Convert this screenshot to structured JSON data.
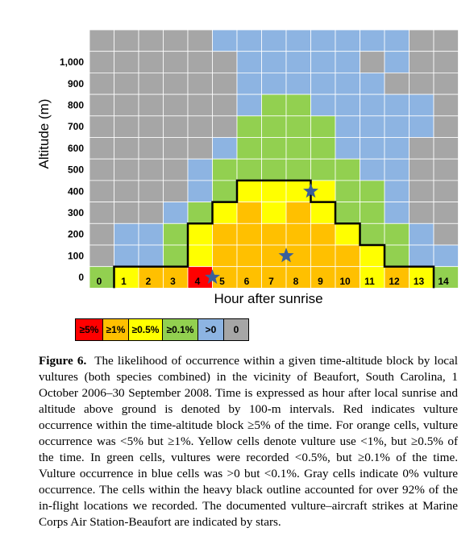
{
  "chart_data": {
    "type": "heatmap",
    "xlabel": "Hour after sunrise",
    "ylabel": "Altitude (m)",
    "x_ticks": [
      "0",
      "1",
      "2",
      "3",
      "4",
      "5",
      "6",
      "7",
      "8",
      "9",
      "10",
      "11",
      "12",
      "13",
      "14"
    ],
    "y_ticks": [
      "0",
      "100",
      "200",
      "300",
      "400",
      "500",
      "600",
      "700",
      "800",
      "900",
      "1,000"
    ],
    "categories": [
      "≥5%",
      "≥1%",
      "≥0.5%",
      "≥0.1%",
      ">0",
      "0"
    ],
    "colors": {
      "red": "#ff0000",
      "orange": "#ffc000",
      "yellow": "#ffff00",
      "green": "#92d050",
      "blue": "#8db4e2",
      "gray": "#a6a6a6"
    },
    "rows_top_to_bottom": [
      "GGGGGBBBBBBBBGG",
      "GGGGGGBBBBBGBGG",
      "GGGGGGBBBBBBGGG",
      "GGGGGGBNNBBBBBG",
      "GGGGGGNNNNBBBBG",
      "GGGGGBNNNNBBBGG",
      "GGGGBNNNNNNBBGG",
      "GGGGBNYYYYNNBGG",
      "GGGBNYOYOYNNBGG",
      "GBBNYOOOOOYNNBG",
      "GBBNYOOOOOOYNBB",
      "NYOOROOOOOOYOYN"
    ],
    "cells_bottom_to_top_note": "row 0 = 0-100 m band",
    "stars": [
      {
        "hour": 4.5,
        "altitude": 50
      },
      {
        "hour": 7.5,
        "altitude": 150
      },
      {
        "hour": 8.5,
        "altitude": 450
      }
    ]
  },
  "legend": [
    {
      "label": "≥5%",
      "color": "#ff0000"
    },
    {
      "label": "≥1%",
      "color": "#ffc000"
    },
    {
      "label": "≥0.5%",
      "color": "#ffff00"
    },
    {
      "label": "≥0.1%",
      "color": "#92d050"
    },
    {
      "label": ">0",
      "color": "#8db4e2"
    },
    {
      "label": "0",
      "color": "#a6a6a6"
    }
  ],
  "caption": {
    "label": "Figure 6.",
    "text": "The likelihood of occurrence within a given time-altitude block by local vultures (both species combined) in the vicinity of Beaufort, South Carolina, 1 October 2006–30 September 2008. Time is expressed as hour after local sunrise and altitude above ground is denoted by 100-m intervals. Red indicates vulture occurrence within the time-altitude block ≥5% of the time. For orange cells, vulture occurrence was <5% but ≥1%. Yellow cells denote vulture use <1%, but ≥0.5% of the time. In green cells, vultures were recorded <0.5%, but ≥0.1% of the time. Vulture occurrence in blue cells was >0 but <0.1%. Gray cells indicate 0% vulture occurrence. The cells within the heavy black outline accounted for over 92% of the in-flight locations we recorded. The documented vulture–aircraft strikes at Marine Corps Air Station-Beaufort are indicated by stars."
  }
}
